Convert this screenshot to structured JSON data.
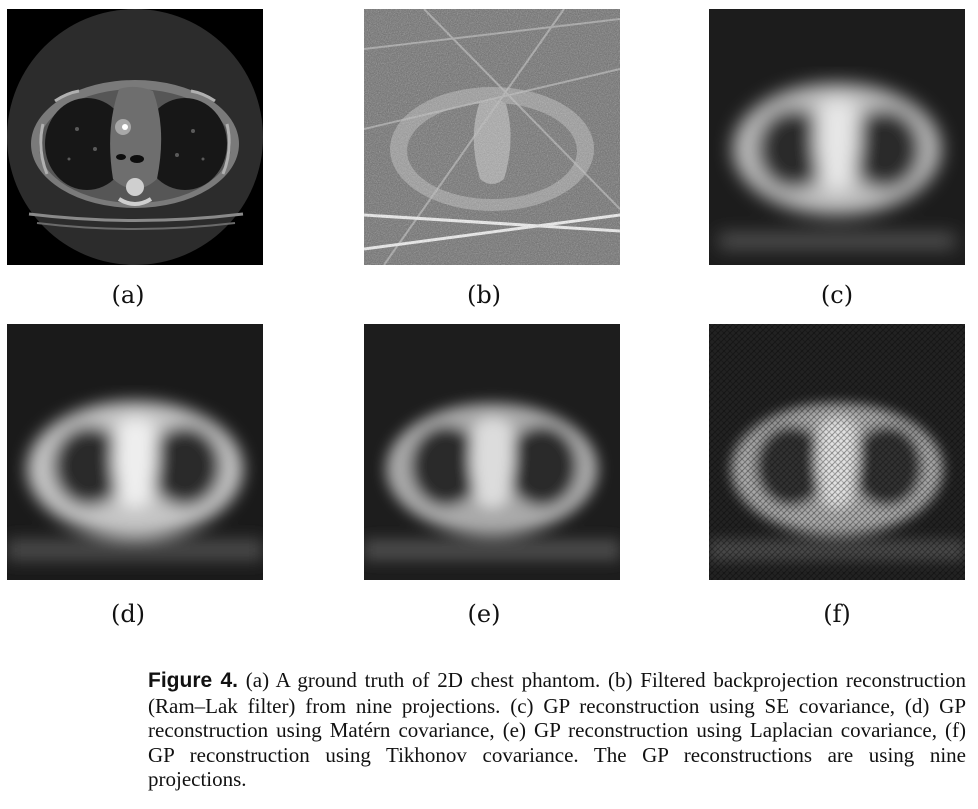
{
  "panels": [
    {
      "label": "(a)",
      "kind": "ground-truth"
    },
    {
      "label": "(b)",
      "kind": "filtered-backprojection"
    },
    {
      "label": "(c)",
      "kind": "gp-se"
    },
    {
      "label": "(d)",
      "kind": "gp-matern"
    },
    {
      "label": "(e)",
      "kind": "gp-laplacian"
    },
    {
      "label": "(f)",
      "kind": "gp-tikhonov"
    }
  ],
  "caption": {
    "figure_label": "Figure 4.",
    "text": " (a) A ground truth of 2D chest phantom. (b) Filtered backprojection reconstruction (Ram–Lak filter) from nine projections. (c) GP reconstruction using SE covariance, (d) GP reconstruction using Matérn covariance, (e) GP reconstruction using Laplacian covariance, (f) GP reconstruction using Tikhonov covariance. The GP reconstructions are using nine projections."
  }
}
